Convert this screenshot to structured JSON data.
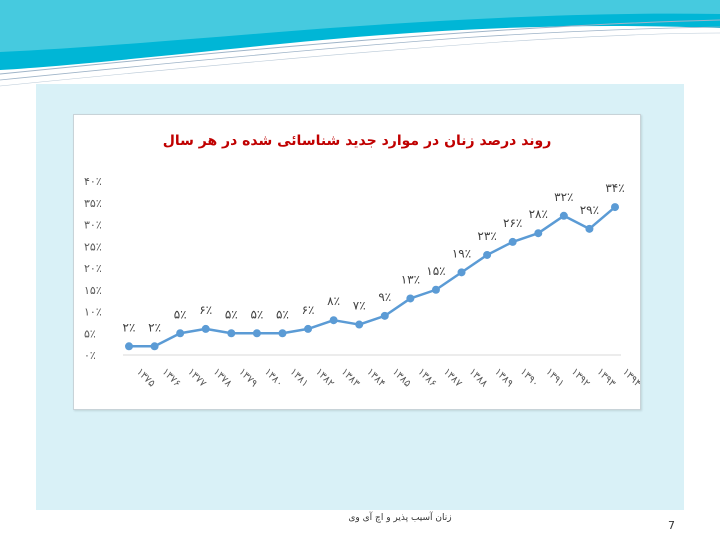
{
  "colors": {
    "series": "#5b9bd5",
    "title": "#c00000",
    "panel": "#d9f1f7",
    "banner": "#00b6d6"
  },
  "chart_data": {
    "type": "line",
    "title": "روند درصد زنان در موارد جدید شناسائی شده در هر سال",
    "xlabel": "",
    "ylabel": "",
    "ylim": [
      0,
      40
    ],
    "yticks": [
      0,
      5,
      10,
      15,
      20,
      25,
      30,
      35,
      40
    ],
    "ytick_labels": [
      "۰٪",
      "۵٪",
      "۱۰٪",
      "۱۵٪",
      "۲۰٪",
      "۲۵٪",
      "۳۰٪",
      "۳۵٪",
      "۴۰٪"
    ],
    "categories": [
      "۱۳۷۵",
      "۱۳۷۶",
      "۱۳۷۷",
      "۱۳۷۸",
      "۱۳۷۹",
      "۱۳۸۰",
      "۱۳۸۱",
      "۱۳۸۲",
      "۱۳۸۳",
      "۱۳۸۴",
      "۱۳۸۵",
      "۱۳۸۶",
      "۱۳۸۷",
      "۱۳۸۸",
      "۱۳۸۹",
      "۱۳۹۰",
      "۱۳۹۱",
      "۱۳۹۲",
      "۱۳۹۳",
      "۱۳۹۴"
    ],
    "values": [
      2,
      2,
      5,
      6,
      5,
      5,
      5,
      6,
      8,
      7,
      9,
      13,
      15,
      19,
      23,
      26,
      28,
      32,
      29,
      34
    ],
    "data_labels": [
      "۲٪",
      "۲٪",
      "۵٪",
      "۶٪",
      "۵٪",
      "۵٪",
      "۵٪",
      "۶٪",
      "۸٪",
      "۷٪",
      "۹٪",
      "۱۳٪",
      "۱۵٪",
      "۱۹٪",
      "۲۳٪",
      "۲۶٪",
      "۲۸٪",
      "۳۲٪",
      "۲۹٪",
      "۳۴٪"
    ],
    "grid": false,
    "legend": "none"
  },
  "footer": {
    "text": "زنان آسیب پذیر و اچ آی وی",
    "page_number": "7"
  }
}
